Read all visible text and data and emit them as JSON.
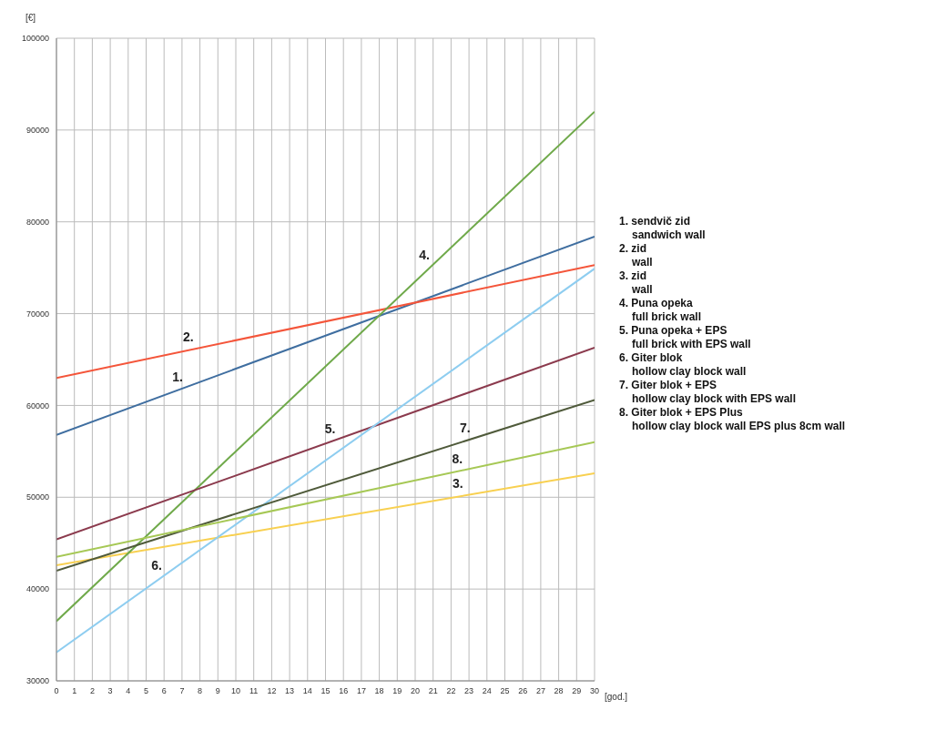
{
  "chart_data": {
    "type": "line",
    "xlabel": "[god.]",
    "ylabel": "[€]",
    "xlim": [
      0,
      30
    ],
    "xticks": [
      0,
      1,
      2,
      3,
      4,
      5,
      6,
      7,
      8,
      9,
      10,
      11,
      12,
      13,
      14,
      15,
      16,
      17,
      18,
      19,
      20,
      21,
      22,
      23,
      24,
      25,
      26,
      27,
      28,
      29,
      30
    ],
    "ylim": [
      30000,
      100000
    ],
    "yticks": [
      30000,
      40000,
      50000,
      60000,
      70000,
      80000,
      90000,
      100000
    ],
    "grid": true,
    "marker": "none",
    "line_style": "solid",
    "x": [
      0,
      30
    ],
    "series": [
      {
        "color": "#3f6ea0",
        "values": [
          56800,
          78400
        ]
      },
      {
        "color": "#f4553a",
        "values": [
          63000,
          75300
        ]
      },
      {
        "color": "#f8d050",
        "values": [
          42600,
          52600
        ]
      },
      {
        "color": "#6fa94a",
        "values": [
          36500,
          92000
        ]
      },
      {
        "color": "#8b3a4d",
        "values": [
          45400,
          66300
        ]
      },
      {
        "color": "#8ecdf0",
        "values": [
          33100,
          74900
        ]
      },
      {
        "color": "#4f5a3a",
        "values": [
          42000,
          60600
        ]
      },
      {
        "color": "#a6c855",
        "values": [
          43500,
          56000
        ]
      }
    ],
    "annotations": [
      {
        "text": "1.",
        "x": 7,
        "y": 61840
      },
      {
        "text": "2.",
        "x": 7.5,
        "y": 66075
      },
      {
        "text": "3.",
        "x": 22.5,
        "y": 50100
      },
      {
        "text": "4.",
        "x": 21,
        "y": 75350
      },
      {
        "text": "5.",
        "x": 15.5,
        "y": 56200
      },
      {
        "text": "6.",
        "x": 6,
        "y": 41460
      },
      {
        "text": "7.",
        "x": 23,
        "y": 56260
      },
      {
        "text": "8.",
        "x": 22.5,
        "y": 52875
      },
      "1. sendvič zid",
      "sandwich wall",
      "2. zid",
      "wall",
      "3. zid",
      "wall",
      "4. Puna opeka",
      "full brick wall",
      "5. Puna opeka + EPS",
      "full brick with EPS wall",
      "6. Giter blok",
      "hollow clay block wall",
      "7. Giter blok + EPS",
      "hollow clay block with EPS wall",
      "8. Giter blok + EPS Plus",
      "hollow clay block wall EPS plus 8cm wall"
    ]
  }
}
